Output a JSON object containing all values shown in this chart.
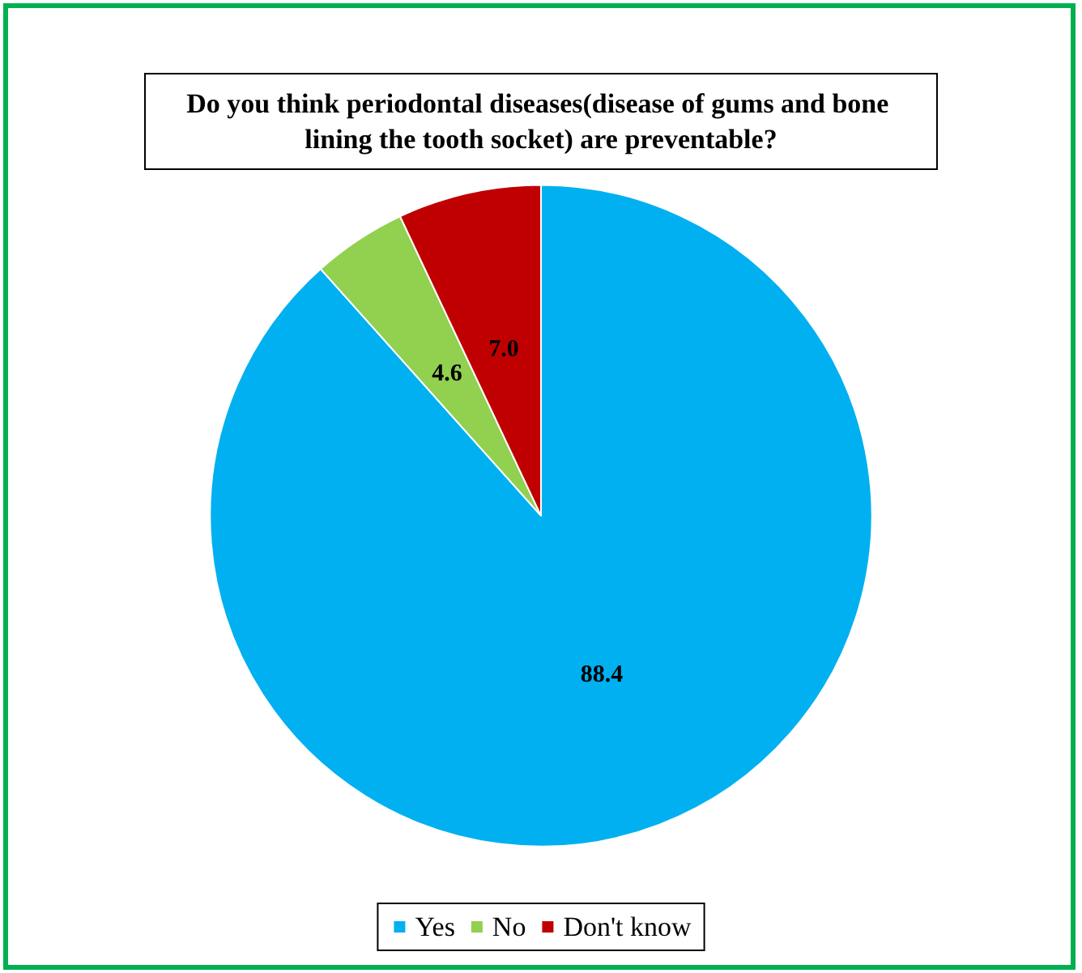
{
  "chart_data": {
    "type": "pie",
    "title": "Do you think periodontal diseases(disease of gums and bone lining the tooth socket) are preventable?",
    "categories": [
      "Yes",
      "No",
      "Don't know"
    ],
    "values": [
      88.4,
      4.6,
      7.0
    ],
    "value_labels": [
      "88.4",
      "4.6",
      "7.0"
    ],
    "colors": [
      "#00b0f0",
      "#92d050",
      "#c00000"
    ],
    "legend": "bottom"
  }
}
